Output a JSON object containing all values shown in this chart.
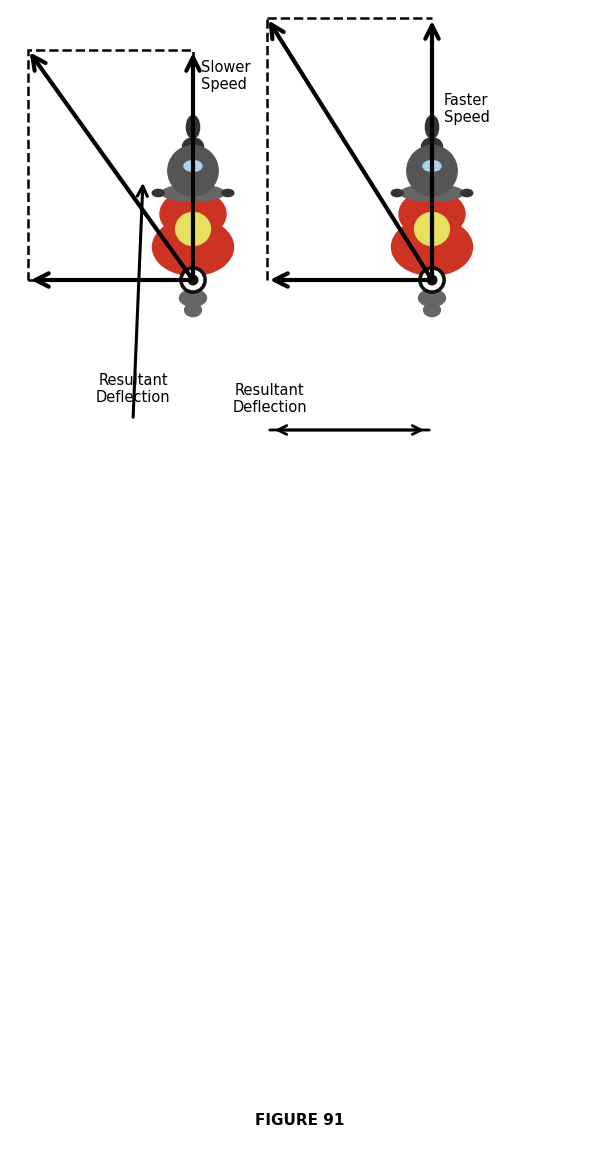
{
  "background_color": "#ffffff",
  "figsize": [
    6.0,
    11.58
  ],
  "dpi": 100,
  "title": "FIGURE 91",
  "title_fontsize": 11,
  "arrow_color": "#000000",
  "text_slower_speed": "Slower\nSpeed",
  "text_faster_speed": "Faster\nSpeed",
  "text_resultant": "Resultant\nDeflection",
  "moto_body_color": "#cc3322",
  "moto_helmet_color": "#555555",
  "moto_visor_color": "#aad4e8",
  "moto_tank_color": "#e8e060",
  "moto_gray_color": "#666666",
  "moto_dark_color": "#333333",
  "moto_wheel_color": "#111111"
}
